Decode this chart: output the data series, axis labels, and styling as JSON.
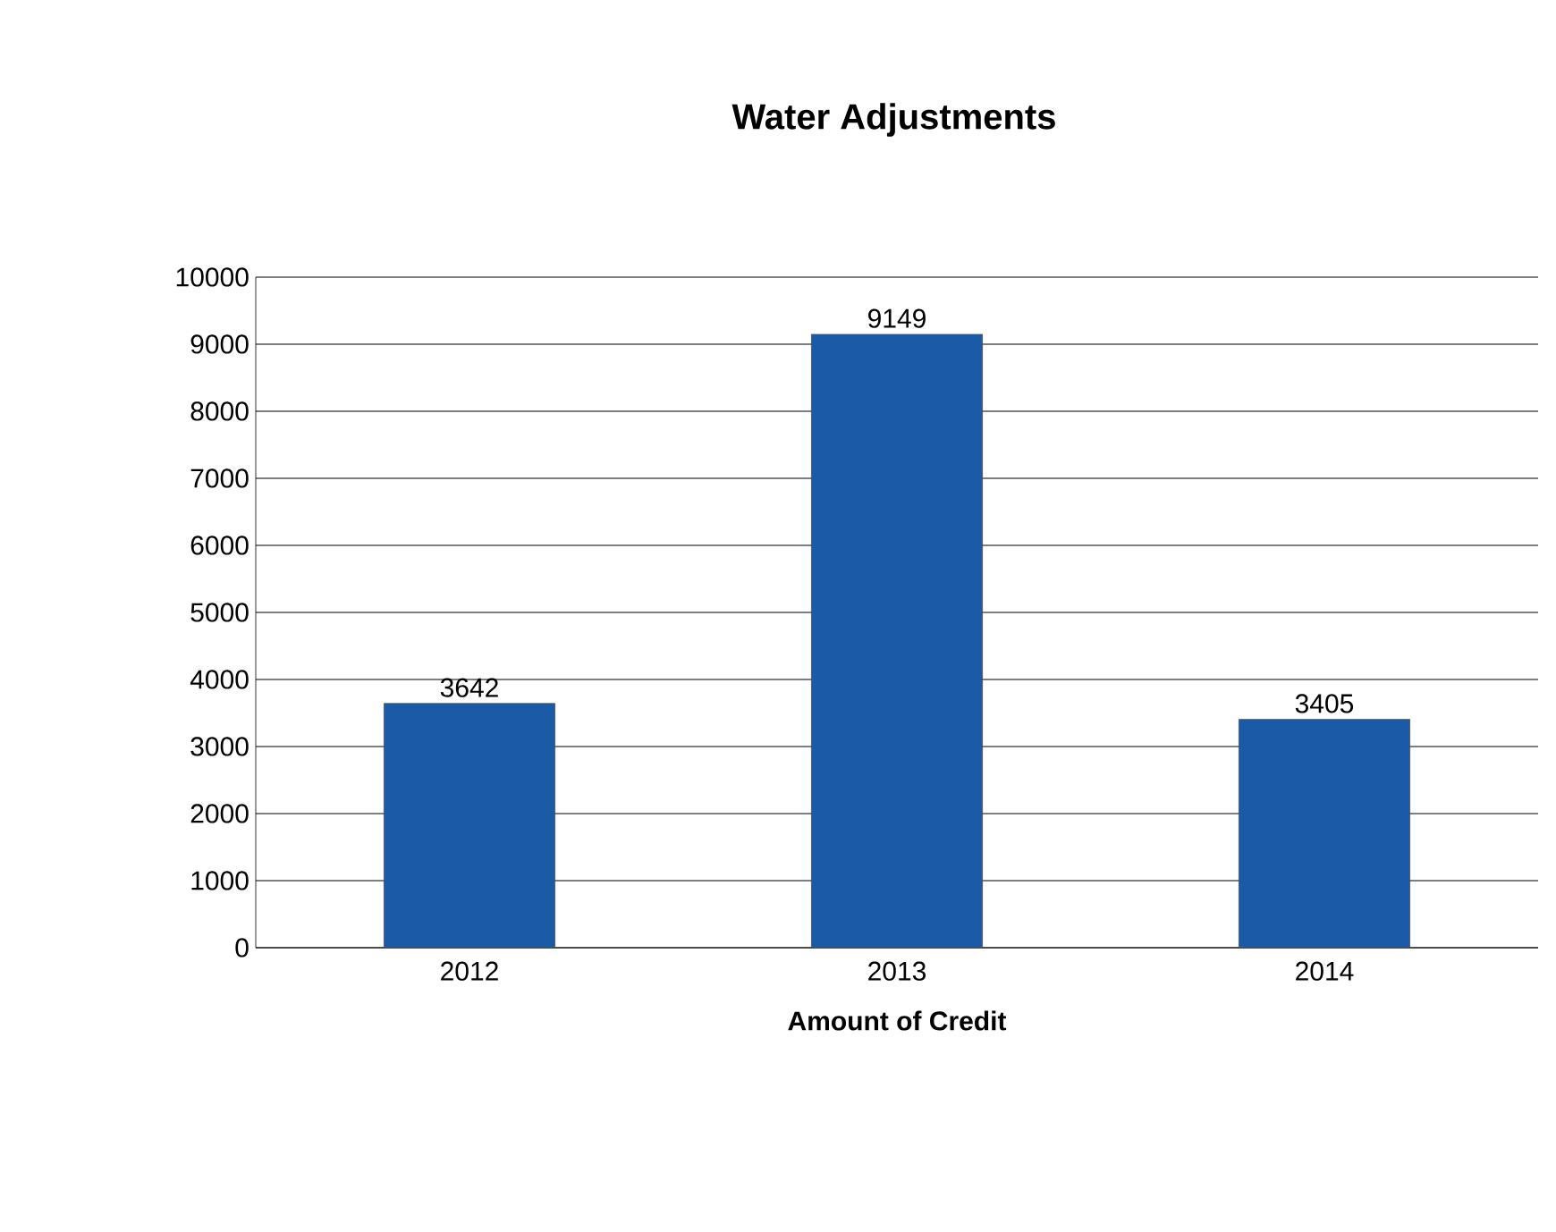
{
  "chart_data": {
    "type": "bar",
    "title": "Water Adjustments",
    "xlabel": "Amount of Credit",
    "categories": [
      "2012",
      "2013",
      "2014"
    ],
    "values": [
      3642,
      9149,
      3405
    ],
    "color": "#1a5aa6",
    "ylim": [
      0,
      10000
    ],
    "yticks": [
      0,
      1000,
      2000,
      3000,
      4000,
      5000,
      6000,
      7000,
      8000,
      9000,
      10000
    ],
    "grid": "y",
    "data_labels": true
  }
}
